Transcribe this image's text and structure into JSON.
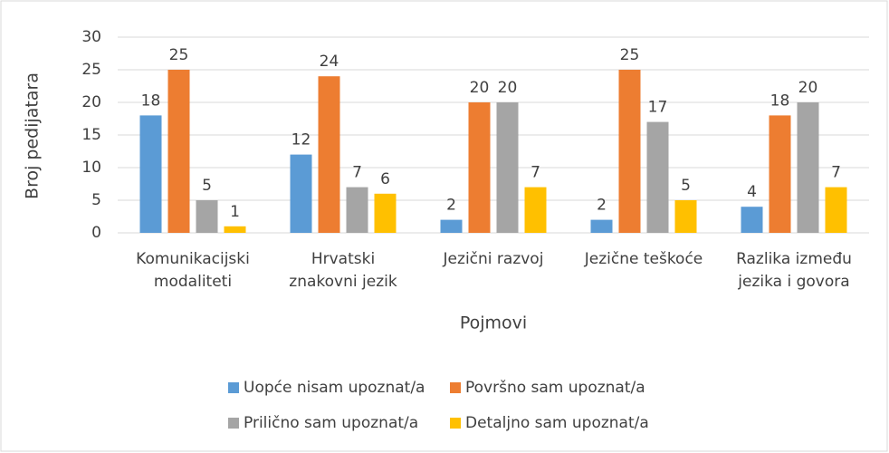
{
  "chart_data": {
    "type": "bar",
    "y_label": "Broj pedijatara",
    "x_label": "Pojmovi",
    "categories": [
      "Komunikacijski modaliteti",
      "Hrvatski znakovni jezik",
      "Jezični razvoj",
      "Jezične teškoće",
      "Razlika između jezika i govora"
    ],
    "series": [
      {
        "name": "Uopće nisam upoznat/a",
        "color": "#5b9bd5",
        "values": [
          18,
          12,
          2,
          2,
          4
        ]
      },
      {
        "name": "Površno sam upoznat/a",
        "color": "#ed7d31",
        "values": [
          25,
          24,
          20,
          25,
          18
        ]
      },
      {
        "name": "Prilično sam upoznat/a",
        "color": "#a5a5a5",
        "values": [
          5,
          7,
          20,
          17,
          20
        ]
      },
      {
        "name": "Detaljno sam upoznat/a",
        "color": "#ffc000",
        "values": [
          1,
          6,
          7,
          5,
          7
        ]
      }
    ],
    "ylim": [
      0,
      30
    ],
    "yticks": [
      0,
      5,
      10,
      15,
      20,
      25,
      30
    ],
    "grid": true,
    "legend": "bottom"
  }
}
